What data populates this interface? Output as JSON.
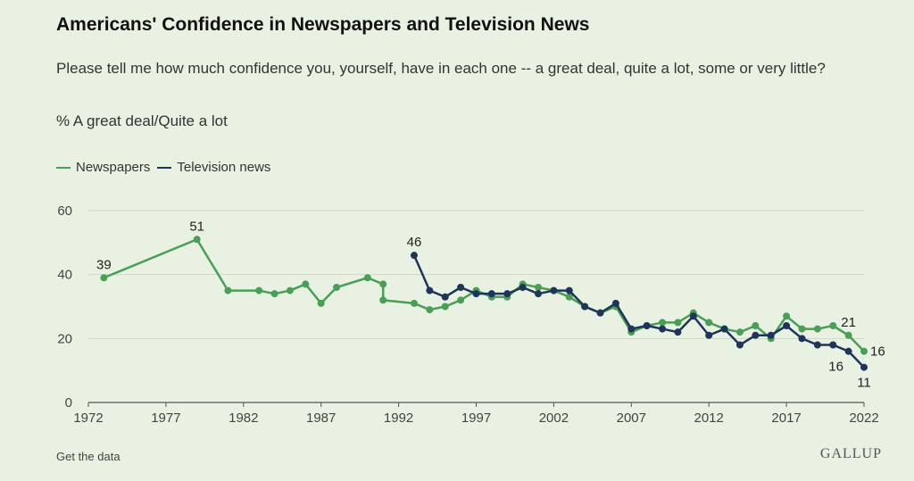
{
  "title": "Americans' Confidence in Newspapers and Television News",
  "subtitle": "Please tell me how much confidence you, yourself, have in each one -- a great deal, quite a lot, some or very little?",
  "measure": "% A great deal/Quite a lot",
  "footer": {
    "link": "Get the data",
    "logo": "GALLUP"
  },
  "colors": {
    "newspapers": "#4a9e55",
    "television": "#1f3459",
    "grid": "#cfd8c8",
    "axis": "#555555"
  },
  "chart_data": {
    "type": "line",
    "xlim": [
      1972,
      2022
    ],
    "ylim": [
      0,
      60
    ],
    "xticks": [
      1972,
      1977,
      1982,
      1987,
      1992,
      1997,
      2002,
      2007,
      2012,
      2017,
      2022
    ],
    "yticks": [
      0,
      20,
      40,
      60
    ],
    "grid": true,
    "legend_position": "top-left",
    "series": [
      {
        "name": "Newspapers",
        "color": "#4a9e55",
        "points": [
          [
            1973,
            39
          ],
          [
            1979,
            51
          ],
          [
            1981,
            35
          ],
          [
            1983,
            35
          ],
          [
            1984,
            34
          ],
          [
            1985,
            35
          ],
          [
            1986,
            37
          ],
          [
            1987,
            31
          ],
          [
            1988,
            36
          ],
          [
            1990,
            39
          ],
          [
            1991,
            37
          ],
          [
            1991,
            32
          ],
          [
            1993,
            31
          ],
          [
            1994,
            29
          ],
          [
            1995,
            30
          ],
          [
            1996,
            32
          ],
          [
            1997,
            35
          ],
          [
            1998,
            33
          ],
          [
            1999,
            33
          ],
          [
            2000,
            37
          ],
          [
            2001,
            36
          ],
          [
            2002,
            35
          ],
          [
            2003,
            33
          ],
          [
            2004,
            30
          ],
          [
            2005,
            28
          ],
          [
            2006,
            30
          ],
          [
            2007,
            22
          ],
          [
            2008,
            24
          ],
          [
            2009,
            25
          ],
          [
            2010,
            25
          ],
          [
            2011,
            28
          ],
          [
            2012,
            25
          ],
          [
            2013,
            23
          ],
          [
            2014,
            22
          ],
          [
            2015,
            24
          ],
          [
            2016,
            20
          ],
          [
            2017,
            27
          ],
          [
            2018,
            23
          ],
          [
            2019,
            23
          ],
          [
            2020,
            24
          ],
          [
            2021,
            21
          ],
          [
            2022,
            16
          ]
        ],
        "labels": [
          {
            "x": 1973,
            "y": 39,
            "text": "39",
            "pos": "above"
          },
          {
            "x": 1979,
            "y": 51,
            "text": "51",
            "pos": "above"
          },
          {
            "x": 2021,
            "y": 21,
            "text": "21",
            "pos": "above"
          },
          {
            "x": 2022,
            "y": 16,
            "text": "16",
            "pos": "right"
          }
        ]
      },
      {
        "name": "Television news",
        "color": "#1f3459",
        "points": [
          [
            1993,
            46
          ],
          [
            1994,
            35
          ],
          [
            1995,
            33
          ],
          [
            1996,
            36
          ],
          [
            1997,
            34
          ],
          [
            1998,
            34
          ],
          [
            1999,
            34
          ],
          [
            2000,
            36
          ],
          [
            2001,
            34
          ],
          [
            2002,
            35
          ],
          [
            2003,
            35
          ],
          [
            2004,
            30
          ],
          [
            2005,
            28
          ],
          [
            2006,
            31
          ],
          [
            2007,
            23
          ],
          [
            2008,
            24
          ],
          [
            2009,
            23
          ],
          [
            2010,
            22
          ],
          [
            2011,
            27
          ],
          [
            2012,
            21
          ],
          [
            2013,
            23
          ],
          [
            2014,
            18
          ],
          [
            2015,
            21
          ],
          [
            2016,
            21
          ],
          [
            2017,
            24
          ],
          [
            2018,
            20
          ],
          [
            2019,
            18
          ],
          [
            2020,
            18
          ],
          [
            2021,
            16
          ],
          [
            2022,
            11
          ]
        ],
        "labels": [
          {
            "x": 1993,
            "y": 46,
            "text": "46",
            "pos": "above"
          },
          {
            "x": 2021,
            "y": 16,
            "text": "16",
            "pos": "below-left"
          },
          {
            "x": 2022,
            "y": 11,
            "text": "11",
            "pos": "below"
          }
        ]
      }
    ]
  }
}
